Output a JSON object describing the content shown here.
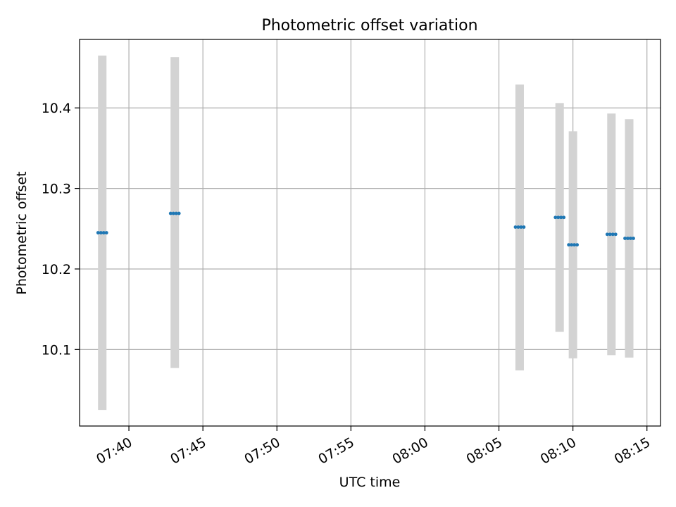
{
  "chart_data": {
    "type": "scatter",
    "title": "Photometric offset variation",
    "xlabel": "UTC time",
    "ylabel": "Photometric offset",
    "x_ticks": [
      "07:40",
      "07:45",
      "07:50",
      "07:55",
      "08:00",
      "08:05",
      "08:10",
      "08:15"
    ],
    "y_ticks": [
      "10.1",
      "10.2",
      "10.3",
      "10.4"
    ],
    "xlim": [
      "07:36:40",
      "08:15:55"
    ],
    "ylim": [
      10.005,
      10.485
    ],
    "grid": true,
    "legend": "none",
    "series": [
      {
        "points": [
          {
            "x": "07:38:12",
            "y": 10.245,
            "err_low": 10.025,
            "err_high": 10.465
          },
          {
            "x": "07:43:06",
            "y": 10.269,
            "err_low": 10.077,
            "err_high": 10.463
          },
          {
            "x": "08:06:24",
            "y": 10.252,
            "err_low": 10.074,
            "err_high": 10.429
          },
          {
            "x": "08:09:06",
            "y": 10.264,
            "err_low": 10.122,
            "err_high": 10.406
          },
          {
            "x": "08:10:00",
            "y": 10.23,
            "err_low": 10.089,
            "err_high": 10.371
          },
          {
            "x": "08:12:36",
            "y": 10.243,
            "err_low": 10.093,
            "err_high": 10.393
          },
          {
            "x": "08:13:48",
            "y": 10.238,
            "err_low": 10.09,
            "err_high": 10.386
          }
        ]
      }
    ],
    "colors": {
      "marker": "#1f77b4",
      "errorbar": "#d3d3d3",
      "grid": "#b0b0b0",
      "axis": "#000000"
    }
  }
}
